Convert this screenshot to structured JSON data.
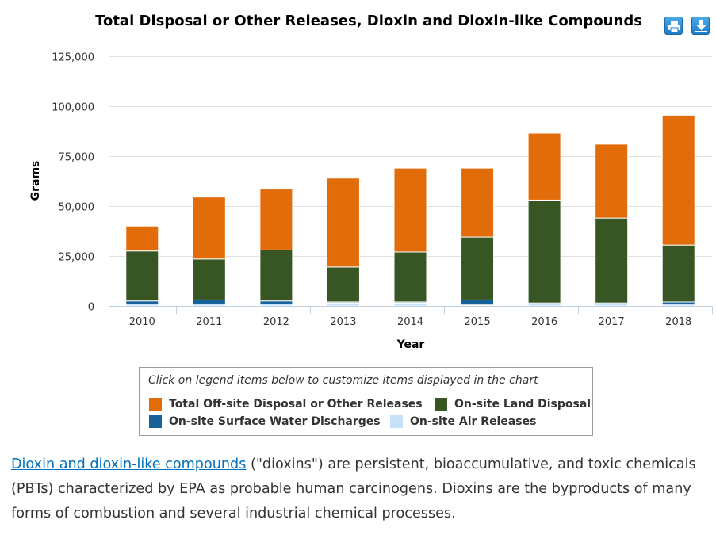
{
  "toolbar": {
    "print_icon": "print-icon",
    "download_icon": "download-icon"
  },
  "chart_data": {
    "type": "bar",
    "stacked": true,
    "title": "Total Disposal or Other Releases, Dioxin and Dioxin-like Compounds",
    "xlabel": "Year",
    "ylabel": "Grams",
    "categories": [
      "2010",
      "2011",
      "2012",
      "2013",
      "2014",
      "2015",
      "2016",
      "2017",
      "2018"
    ],
    "ylim": [
      0,
      125000
    ],
    "yticks": [
      0,
      25000,
      50000,
      75000,
      100000,
      125000
    ],
    "ytick_labels": [
      "0",
      "25,000",
      "50,000",
      "75,000",
      "100,000",
      "125,000"
    ],
    "grid": true,
    "legend_position": "bottom",
    "series": [
      {
        "name": "On-site Air Releases",
        "color": "#c6e2fb",
        "values": [
          1000,
          1000,
          1000,
          1500,
          1500,
          500,
          1000,
          1000,
          1000
        ]
      },
      {
        "name": "On-site Surface Water Discharges",
        "color": "#17629b",
        "values": [
          1500,
          2000,
          1500,
          500,
          500,
          2500,
          500,
          500,
          1000
        ]
      },
      {
        "name": "On-site Land Disposal",
        "color": "#375623",
        "values": [
          25000,
          20500,
          25500,
          17500,
          25000,
          31500,
          51500,
          42500,
          28500
        ]
      },
      {
        "name": "Total Off-site Disposal or Other Releases",
        "color": "#e26b0a",
        "values": [
          12500,
          31000,
          30500,
          44500,
          42000,
          34500,
          33500,
          37000,
          65000
        ]
      }
    ]
  },
  "legend": {
    "hint": "Click on legend items below to customize items displayed in the chart",
    "items": [
      {
        "label": "Total Off-site Disposal or Other Releases",
        "color": "#e26b0a"
      },
      {
        "label": "On-site Land Disposal",
        "color": "#375623"
      },
      {
        "label": "On-site Surface Water Discharges",
        "color": "#17629b"
      },
      {
        "label": "On-site Air Releases",
        "color": "#c6e2fb"
      }
    ]
  },
  "description": {
    "link_text": "Dioxin and dioxin-like compounds",
    "text": " (\"dioxins\") are persistent, bioaccumulative, and toxic chemicals (PBTs) characterized by EPA as probable human carcinogens. Dioxins are the byproducts of many forms of combustion and several industrial chemical processes."
  }
}
